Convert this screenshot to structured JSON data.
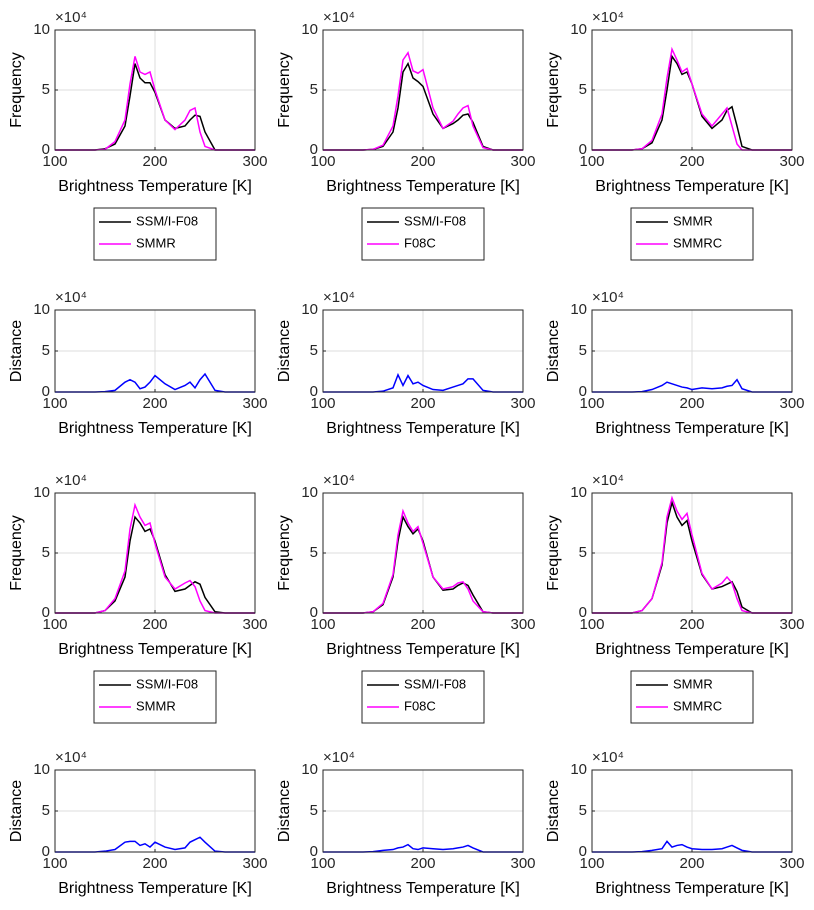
{
  "chart_data": [
    {
      "type": "line",
      "ylabel": "Frequency",
      "xlabel": "Brightness Temperature [K]",
      "y_multiplier": "×10⁴",
      "x": [
        100,
        140,
        150,
        160,
        170,
        175,
        180,
        185,
        190,
        195,
        200,
        210,
        220,
        230,
        235,
        240,
        245,
        250,
        260,
        270,
        300
      ],
      "series": [
        {
          "name": "SSM/I-F08",
          "color": "#000000",
          "values": [
            0,
            0,
            0.1,
            0.5,
            2,
            4.5,
            7.2,
            6,
            5.6,
            5.6,
            4.8,
            2.5,
            1.8,
            2,
            2.5,
            2.9,
            2.8,
            1.5,
            0,
            0,
            0
          ]
        },
        {
          "name": "SMMR",
          "color": "#ff00ff",
          "values": [
            0,
            0,
            0.05,
            0.7,
            2.5,
            5.5,
            7.8,
            6.5,
            6.3,
            6.5,
            5,
            2.5,
            1.7,
            2.5,
            3.3,
            3.5,
            1.5,
            0.3,
            0,
            0,
            0
          ]
        }
      ],
      "xlim": [
        100,
        300
      ],
      "ylim": [
        0,
        10
      ],
      "xticks": [
        100,
        200,
        300
      ],
      "yticks": [
        0,
        5,
        10
      ],
      "grid": true,
      "legend": "below"
    },
    {
      "type": "line",
      "ylabel": "Frequency",
      "xlabel": "Brightness Temperature [K]",
      "y_multiplier": "×10⁴",
      "x": [
        100,
        140,
        150,
        160,
        170,
        175,
        180,
        185,
        190,
        195,
        200,
        210,
        220,
        230,
        235,
        240,
        245,
        250,
        260,
        270,
        300
      ],
      "series": [
        {
          "name": "SSM/I-F08",
          "color": "#000000",
          "values": [
            0,
            0,
            0.05,
            0.3,
            1.5,
            3.5,
            6.5,
            7.2,
            6,
            5.7,
            5.3,
            3,
            1.8,
            2.2,
            2.5,
            2.9,
            3,
            2.3,
            0.3,
            0,
            0
          ]
        },
        {
          "name": "F08C",
          "color": "#ff00ff",
          "values": [
            0,
            0,
            0.05,
            0.4,
            2,
            4.5,
            7.5,
            8.1,
            6.6,
            6.4,
            6.7,
            3.5,
            1.8,
            2.4,
            3,
            3.5,
            3.7,
            2,
            0.2,
            0,
            0
          ]
        }
      ],
      "xlim": [
        100,
        300
      ],
      "ylim": [
        0,
        10
      ],
      "xticks": [
        100,
        200,
        300
      ],
      "yticks": [
        0,
        5,
        10
      ],
      "grid": true,
      "legend": "below"
    },
    {
      "type": "line",
      "ylabel": "Frequency",
      "xlabel": "Brightness Temperature [K]",
      "y_multiplier": "×10⁴",
      "x": [
        100,
        140,
        150,
        160,
        170,
        175,
        180,
        185,
        190,
        195,
        200,
        210,
        220,
        230,
        235,
        240,
        245,
        250,
        260,
        270,
        300
      ],
      "series": [
        {
          "name": "SMMR",
          "color": "#000000",
          "values": [
            0,
            0,
            0.1,
            0.6,
            2.5,
            5,
            7.8,
            7.2,
            6.3,
            6.5,
            5.5,
            2.8,
            1.8,
            2.5,
            3.3,
            3.6,
            2,
            0.3,
            0,
            0,
            0
          ]
        },
        {
          "name": "SMMRC",
          "color": "#ff00ff",
          "values": [
            0,
            0,
            0.1,
            0.8,
            3,
            6,
            8.4,
            7.5,
            6.5,
            6.8,
            5.5,
            3,
            2,
            3,
            3.5,
            2,
            0.5,
            0,
            0,
            0,
            0
          ]
        }
      ],
      "xlim": [
        100,
        300
      ],
      "ylim": [
        0,
        10
      ],
      "xticks": [
        100,
        200,
        300
      ],
      "yticks": [
        0,
        5,
        10
      ],
      "grid": true,
      "legend": "below"
    },
    {
      "type": "line",
      "ylabel": "Distance",
      "xlabel": "Brightness Temperature [K]",
      "y_multiplier": "×10⁴",
      "x": [
        100,
        140,
        150,
        160,
        170,
        175,
        180,
        185,
        190,
        195,
        200,
        210,
        220,
        230,
        235,
        240,
        245,
        250,
        260,
        270,
        300
      ],
      "series": [
        {
          "color": "#0000ff",
          "values": [
            0,
            0,
            0.05,
            0.2,
            1.2,
            1.5,
            1.2,
            0.4,
            0.6,
            1.2,
            2,
            1,
            0.3,
            0.8,
            1.2,
            0.5,
            1.5,
            2.2,
            0.2,
            0,
            0
          ]
        }
      ],
      "xlim": [
        100,
        300
      ],
      "ylim": [
        0,
        10
      ],
      "xticks": [
        100,
        200,
        300
      ],
      "yticks": [
        0,
        5,
        10
      ],
      "grid": true
    },
    {
      "type": "line",
      "ylabel": "Distance",
      "xlabel": "Brightness Temperature [K]",
      "y_multiplier": "×10⁴",
      "x": [
        100,
        140,
        150,
        160,
        170,
        175,
        180,
        185,
        190,
        195,
        200,
        210,
        220,
        230,
        235,
        240,
        245,
        250,
        260,
        270,
        300
      ],
      "series": [
        {
          "color": "#0000ff",
          "values": [
            0,
            0,
            0,
            0.1,
            0.5,
            2.1,
            0.8,
            2,
            1,
            1.2,
            0.8,
            0.3,
            0.2,
            0.6,
            0.8,
            1,
            1.6,
            1.6,
            0.2,
            0,
            0
          ]
        }
      ],
      "xlim": [
        100,
        300
      ],
      "ylim": [
        0,
        10
      ],
      "xticks": [
        100,
        200,
        300
      ],
      "yticks": [
        0,
        5,
        10
      ],
      "grid": true
    },
    {
      "type": "line",
      "ylabel": "Distance",
      "xlabel": "Brightness Temperature [K]",
      "y_multiplier": "×10⁴",
      "x": [
        100,
        140,
        150,
        160,
        170,
        175,
        180,
        185,
        190,
        195,
        200,
        210,
        220,
        230,
        235,
        240,
        245,
        250,
        260,
        270,
        300
      ],
      "series": [
        {
          "color": "#0000ff",
          "values": [
            0,
            0,
            0.05,
            0.3,
            0.8,
            1.2,
            1,
            0.8,
            0.6,
            0.5,
            0.3,
            0.5,
            0.4,
            0.5,
            0.7,
            0.8,
            1.5,
            0.4,
            0,
            0,
            0
          ]
        }
      ],
      "xlim": [
        100,
        300
      ],
      "ylim": [
        0,
        10
      ],
      "xticks": [
        100,
        200,
        300
      ],
      "yticks": [
        0,
        5,
        10
      ],
      "grid": true
    },
    {
      "type": "line",
      "ylabel": "Frequency",
      "xlabel": "Brightness Temperature [K]",
      "y_multiplier": "×10⁴",
      "x": [
        100,
        140,
        150,
        160,
        170,
        175,
        180,
        185,
        190,
        195,
        200,
        210,
        220,
        230,
        235,
        240,
        245,
        250,
        260,
        270,
        300
      ],
      "series": [
        {
          "name": "SSM/I-F08",
          "color": "#000000",
          "values": [
            0,
            0,
            0.2,
            1,
            3,
            6,
            8,
            7.5,
            6.8,
            7,
            6,
            3.2,
            1.8,
            2,
            2.3,
            2.6,
            2.4,
            1.3,
            0.1,
            0,
            0
          ]
        },
        {
          "name": "SMMR",
          "color": "#ff00ff",
          "values": [
            0,
            0,
            0.2,
            1.2,
            3.5,
            7,
            9,
            8,
            7.3,
            7.5,
            5.8,
            3,
            2,
            2.5,
            2.7,
            2.2,
            1,
            0.2,
            0,
            0,
            0
          ]
        }
      ],
      "xlim": [
        100,
        300
      ],
      "ylim": [
        0,
        10
      ],
      "xticks": [
        100,
        200,
        300
      ],
      "yticks": [
        0,
        5,
        10
      ],
      "grid": true,
      "legend": "below"
    },
    {
      "type": "line",
      "ylabel": "Frequency",
      "xlabel": "Brightness Temperature [K]",
      "y_multiplier": "×10⁴",
      "x": [
        100,
        140,
        150,
        160,
        170,
        175,
        180,
        185,
        190,
        195,
        200,
        210,
        220,
        230,
        235,
        240,
        245,
        250,
        260,
        270,
        300
      ],
      "series": [
        {
          "name": "SSM/I-F08",
          "color": "#000000",
          "values": [
            0,
            0,
            0.1,
            0.7,
            3,
            6,
            8,
            7.2,
            6.6,
            7,
            6,
            3,
            1.9,
            2,
            2.3,
            2.5,
            2.3,
            1.5,
            0.1,
            0,
            0
          ]
        },
        {
          "name": "F08C",
          "color": "#ff00ff",
          "values": [
            0,
            0,
            0.1,
            0.8,
            3.2,
            6.5,
            8.5,
            7.5,
            6.8,
            7.2,
            5.8,
            3,
            2,
            2.2,
            2.5,
            2.6,
            2,
            1,
            0.1,
            0,
            0
          ]
        }
      ],
      "xlim": [
        100,
        300
      ],
      "ylim": [
        0,
        10
      ],
      "xticks": [
        100,
        200,
        300
      ],
      "yticks": [
        0,
        5,
        10
      ],
      "grid": true,
      "legend": "below"
    },
    {
      "type": "line",
      "ylabel": "Frequency",
      "xlabel": "Brightness Temperature [K]",
      "y_multiplier": "×10⁴",
      "x": [
        100,
        140,
        150,
        160,
        170,
        175,
        180,
        185,
        190,
        195,
        200,
        210,
        220,
        230,
        235,
        240,
        245,
        250,
        260,
        270,
        300
      ],
      "series": [
        {
          "name": "SMMR",
          "color": "#000000",
          "values": [
            0,
            0,
            0.2,
            1.2,
            4,
            7.5,
            9.2,
            8,
            7.3,
            7.7,
            6,
            3.2,
            2,
            2.2,
            2.4,
            2.6,
            1.8,
            0.5,
            0,
            0,
            0
          ]
        },
        {
          "name": "SMMRC",
          "color": "#ff00ff",
          "values": [
            0,
            0,
            0.2,
            1.2,
            4.2,
            8,
            9.6,
            8.5,
            7.8,
            8.3,
            6.5,
            3.3,
            2,
            2.5,
            3,
            2.5,
            1.2,
            0.2,
            0,
            0,
            0
          ]
        }
      ],
      "xlim": [
        100,
        300
      ],
      "ylim": [
        0,
        10
      ],
      "xticks": [
        100,
        200,
        300
      ],
      "yticks": [
        0,
        5,
        10
      ],
      "grid": true,
      "legend": "below"
    },
    {
      "type": "line",
      "ylabel": "Distance",
      "xlabel": "Brightness Temperature [K]",
      "y_multiplier": "×10⁴",
      "x": [
        100,
        140,
        150,
        160,
        170,
        175,
        180,
        185,
        190,
        195,
        200,
        210,
        220,
        230,
        235,
        240,
        245,
        250,
        260,
        270,
        300
      ],
      "series": [
        {
          "color": "#0000ff",
          "values": [
            0,
            0,
            0.1,
            0.3,
            1.2,
            1.3,
            1.3,
            0.8,
            1,
            0.6,
            1.2,
            0.6,
            0.3,
            0.5,
            1.2,
            1.5,
            1.8,
            1.2,
            0.1,
            0,
            0
          ]
        }
      ],
      "xlim": [
        100,
        300
      ],
      "ylim": [
        0,
        10
      ],
      "xticks": [
        100,
        200,
        300
      ],
      "yticks": [
        0,
        5,
        10
      ],
      "grid": true
    },
    {
      "type": "line",
      "ylabel": "Distance",
      "xlabel": "Brightness Temperature [K]",
      "y_multiplier": "×10⁴",
      "x": [
        100,
        140,
        150,
        160,
        170,
        175,
        180,
        185,
        190,
        195,
        200,
        210,
        220,
        230,
        235,
        240,
        245,
        250,
        260,
        270,
        300
      ],
      "series": [
        {
          "color": "#0000ff",
          "values": [
            0,
            0,
            0.05,
            0.2,
            0.3,
            0.5,
            0.6,
            0.9,
            0.4,
            0.3,
            0.5,
            0.4,
            0.3,
            0.4,
            0.5,
            0.6,
            0.8,
            0.5,
            0,
            0,
            0
          ]
        }
      ],
      "xlim": [
        100,
        300
      ],
      "ylim": [
        0,
        10
      ],
      "xticks": [
        100,
        200,
        300
      ],
      "yticks": [
        0,
        5,
        10
      ],
      "grid": true
    },
    {
      "type": "line",
      "ylabel": "Distance",
      "xlabel": "Brightness Temperature [K]",
      "y_multiplier": "×10⁴",
      "x": [
        100,
        140,
        150,
        160,
        170,
        175,
        180,
        185,
        190,
        195,
        200,
        210,
        220,
        230,
        235,
        240,
        245,
        250,
        260,
        270,
        300
      ],
      "series": [
        {
          "color": "#0000ff",
          "values": [
            0,
            0,
            0.05,
            0.2,
            0.4,
            1.3,
            0.6,
            0.8,
            0.9,
            0.6,
            0.4,
            0.3,
            0.3,
            0.4,
            0.6,
            0.8,
            0.5,
            0.2,
            0,
            0,
            0
          ]
        }
      ],
      "xlim": [
        100,
        300
      ],
      "ylim": [
        0,
        10
      ],
      "xticks": [
        100,
        200,
        300
      ],
      "yticks": [
        0,
        5,
        10
      ],
      "grid": true
    }
  ]
}
